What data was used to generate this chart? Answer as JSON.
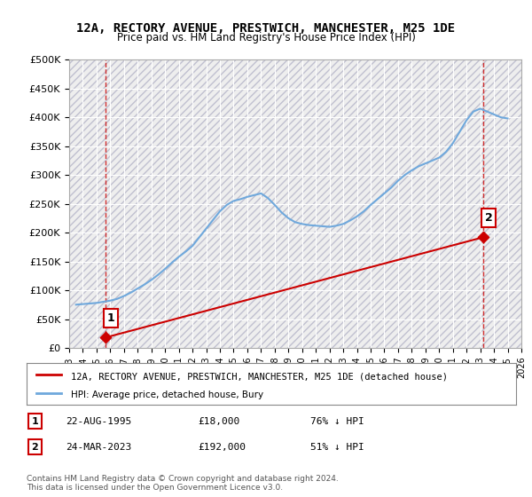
{
  "title": "12A, RECTORY AVENUE, PRESTWICH, MANCHESTER, M25 1DE",
  "subtitle": "Price paid vs. HM Land Registry's House Price Index (HPI)",
  "legend_line1": "12A, RECTORY AVENUE, PRESTWICH, MANCHESTER, M25 1DE (detached house)",
  "legend_line2": "HPI: Average price, detached house, Bury",
  "footnote": "Contains HM Land Registry data © Crown copyright and database right 2024.\nThis data is licensed under the Open Government Licence v3.0.",
  "annotation1_label": "1",
  "annotation1_date": "22-AUG-1995",
  "annotation1_price": "£18,000",
  "annotation1_hpi": "76% ↓ HPI",
  "annotation2_label": "2",
  "annotation2_date": "24-MAR-2023",
  "annotation2_price": "£192,000",
  "annotation2_hpi": "51% ↓ HPI",
  "sale_dates": [
    1995.644,
    2023.228
  ],
  "sale_prices": [
    18000,
    192000
  ],
  "hpi_line_color": "#6fa8dc",
  "sale_line_color": "#cc0000",
  "sale_marker_color": "#cc0000",
  "vline_color": "#cc0000",
  "background_hatch_color": "#e8e8f0",
  "ylim": [
    0,
    500000
  ],
  "xlim": [
    1993,
    2026
  ],
  "yticks": [
    0,
    50000,
    100000,
    150000,
    200000,
    250000,
    300000,
    350000,
    400000,
    450000,
    500000
  ],
  "xticks": [
    1993,
    1994,
    1995,
    1996,
    1997,
    1998,
    1999,
    2000,
    2001,
    2002,
    2003,
    2004,
    2005,
    2006,
    2007,
    2008,
    2009,
    2010,
    2011,
    2012,
    2013,
    2014,
    2015,
    2016,
    2017,
    2018,
    2019,
    2020,
    2021,
    2022,
    2023,
    2024,
    2025,
    2026
  ],
  "hpi_years": [
    1993.5,
    1994.0,
    1994.5,
    1995.0,
    1995.5,
    1996.0,
    1996.5,
    1997.0,
    1997.5,
    1998.0,
    1998.5,
    1999.0,
    1999.5,
    2000.0,
    2000.5,
    2001.0,
    2001.5,
    2002.0,
    2002.5,
    2003.0,
    2003.5,
    2004.0,
    2004.5,
    2005.0,
    2005.5,
    2006.0,
    2006.5,
    2007.0,
    2007.5,
    2008.0,
    2008.5,
    2009.0,
    2009.5,
    2010.0,
    2010.5,
    2011.0,
    2011.5,
    2012.0,
    2012.5,
    2013.0,
    2013.5,
    2014.0,
    2014.5,
    2015.0,
    2015.5,
    2016.0,
    2016.5,
    2017.0,
    2017.5,
    2018.0,
    2018.5,
    2019.0,
    2019.5,
    2020.0,
    2020.5,
    2021.0,
    2021.5,
    2022.0,
    2022.5,
    2023.0,
    2023.5,
    2024.0,
    2024.5,
    2025.0
  ],
  "hpi_values": [
    75000,
    76000,
    77000,
    78000,
    80000,
    82000,
    85000,
    90000,
    96000,
    103000,
    110000,
    118000,
    127000,
    137000,
    148000,
    158000,
    167000,
    177000,
    192000,
    207000,
    222000,
    237000,
    248000,
    255000,
    258000,
    262000,
    265000,
    268000,
    260000,
    248000,
    235000,
    225000,
    218000,
    215000,
    213000,
    212000,
    211000,
    210000,
    212000,
    215000,
    221000,
    228000,
    237000,
    248000,
    258000,
    268000,
    278000,
    290000,
    300000,
    308000,
    315000,
    320000,
    325000,
    330000,
    340000,
    355000,
    375000,
    395000,
    410000,
    415000,
    410000,
    405000,
    400000,
    398000
  ]
}
